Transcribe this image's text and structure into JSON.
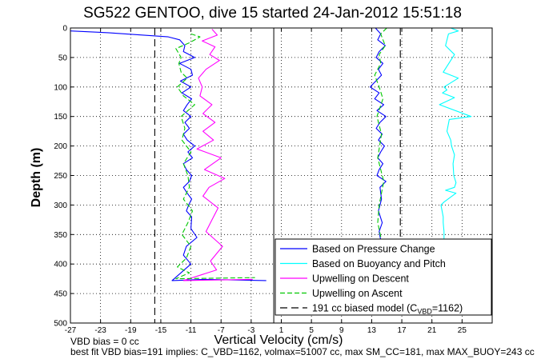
{
  "chart_data": {
    "type": "line",
    "title": "SG522 GENTOO, dive 15 started 24-Jan-2012 15:51:18",
    "xlabel": "Vertical Velocity (cm/s)",
    "ylabel": "Depth (m)",
    "xlim": [
      -27,
      29
    ],
    "ylim": [
      0,
      500
    ],
    "y_reversed": true,
    "grid": true,
    "legend_position": "bottom-right",
    "xticks": [
      -27,
      -23,
      -19,
      -15,
      -11,
      -7,
      -3,
      1,
      5,
      9,
      13,
      17,
      21,
      25
    ],
    "yticks": [
      0,
      50,
      100,
      150,
      200,
      250,
      300,
      350,
      400,
      450,
      500
    ],
    "series": [
      {
        "name": "Based on Pressure Change",
        "color": "#0000ff",
        "dash": "solid",
        "segments": [
          {
            "x": [
              -27,
              -22,
              -14,
              -12.5,
              -11.8,
              -12,
              -10.5,
              -12.5,
              -11,
              -10.8,
              -12.4,
              -11,
              -12.2,
              -10.9,
              -11.5,
              -12,
              -11,
              -11.8,
              -11.2,
              -12,
              -11.5,
              -10.5,
              -11.4,
              -10.8,
              -12,
              -11.6,
              -10.9,
              -11.2,
              -12,
              -11.5,
              -10.9,
              -11.3,
              -11.6,
              -10.9,
              -11,
              -10.2,
              -11.6,
              -12,
              -11,
              -13.5,
              -9,
              -1
            ],
            "y": [
              5,
              8,
              15,
              20,
              30,
              40,
              50,
              60,
              70,
              80,
              90,
              100,
              110,
              120,
              130,
              140,
              150,
              160,
              170,
              180,
              190,
              200,
              210,
              220,
              230,
              240,
              250,
              260,
              270,
              280,
              290,
              300,
              310,
              320,
              340,
              355,
              370,
              385,
              400,
              428,
              426,
              428
            ]
          },
          {
            "x": [
              13.5,
              14.2,
              13.8,
              14.8,
              14.0,
              13.6,
              14.5,
              13.9,
              14.3,
              12.8,
              14.0,
              13.4,
              14.6,
              13.7,
              14.9,
              14.1,
              13.6,
              14.4,
              13.9,
              14.7,
              14.2,
              13.8,
              14.5,
              14.0,
              13.7,
              14.9,
              14.1,
              14.3,
              13.9,
              14.4,
              14.0,
              14.2
            ],
            "y": [
              0,
              10,
              20,
              30,
              40,
              50,
              60,
              70,
              80,
              100,
              110,
              120,
              130,
              140,
              150,
              160,
              170,
              180,
              190,
              200,
              210,
              220,
              230,
              240,
              250,
              260,
              270,
              290,
              310,
              330,
              345,
              360
            ]
          }
        ]
      },
      {
        "name": "Based on Buoyancy and Pitch",
        "color": "#00ffff",
        "dash": "solid",
        "segments": [
          {
            "x": [
              23.5,
              24.5,
              23.2,
              22.8,
              24.0,
              23.5,
              22.5,
              24.5,
              22.6,
              23.0,
              22.4,
              24.0,
              22.0,
              26.2,
              23.3,
              23.0,
              23.5,
              23.6,
              24.0,
              23.8,
              23.9,
              24.2,
              24.0,
              22.8,
              24.2,
              22.6,
              22.2,
              22.5,
              22.5,
              22.6,
              22.6
            ],
            "y": [
              0,
              5,
              10,
              30,
              45,
              55,
              75,
              85,
              100,
              105,
              110,
              118,
              130,
              150,
              155,
              175,
              190,
              200,
              215,
              230,
              250,
              262,
              270,
              275,
              280,
              295,
              300,
              320,
              330,
              345,
              360
            ]
          }
        ]
      },
      {
        "name": "Upwelling on Descent",
        "color": "#ff00ff",
        "dash": "solid",
        "segments": [
          {
            "x": [
              -8.2,
              -7.5,
              -9.5,
              -7.8,
              -8.5,
              -7.2,
              -9.0,
              -10.0,
              -9.5,
              -9.8,
              -8.2,
              -9.4,
              -7.8,
              -9.4,
              -8.0,
              -10.2,
              -7.0,
              -9.2,
              -6.5,
              -8.6,
              -9.4,
              -7.4,
              -8.2,
              -9.0,
              -6.8,
              -8.4,
              -7.6,
              -12.0,
              -2.8
            ],
            "y": [
              2,
              12,
              22,
              32,
              45,
              55,
              70,
              85,
              100,
              115,
              130,
              145,
              160,
              175,
              190,
              205,
              220,
              240,
              255,
              270,
              285,
              305,
              325,
              345,
              370,
              395,
              410,
              428,
              426
            ]
          }
        ]
      },
      {
        "name": "Upwelling on Ascent",
        "color": "#00c800",
        "dash": "6,3",
        "segments": [
          {
            "x": [
              -11.0,
              -9.8,
              -11.2,
              -13.0,
              -12.3,
              -12.6,
              -12.3,
              -11.5,
              -12.8,
              -12.0,
              -10.5,
              -12.3,
              -11.8,
              -12.2,
              -11.0,
              -12.0,
              -11.4,
              -11.2,
              -12.0,
              -10.8,
              -11.4,
              -12.2,
              -11.0,
              -11.6,
              -12.8,
              -11.2,
              -13.0,
              -2.5
            ],
            "y": [
              10,
              15,
              25,
              35,
              50,
              60,
              75,
              85,
              100,
              115,
              130,
              150,
              170,
              190,
              210,
              230,
              250,
              270,
              290,
              310,
              330,
              350,
              370,
              390,
              405,
              415,
              425,
              423
            ]
          },
          {
            "x": [
              15.0,
              14.2,
              14.8,
              14.0,
              14.2,
              13.4,
              14.0,
              14.5,
              13.7,
              14.3,
              13.8,
              14.6,
              14.0,
              13.8,
              14.3
            ],
            "y": [
              0,
              10,
              30,
              45,
              60,
              80,
              100,
              120,
              150,
              180,
              220,
              260,
              300,
              330,
              360
            ]
          }
        ]
      },
      {
        "name": "191 cc biased model (C_VBD=1162)",
        "color": "#000000",
        "dash": "9,5",
        "segments": [
          {
            "x": [
              -15.8,
              -15.8
            ],
            "y": [
              0,
              500
            ]
          },
          {
            "x": [
              16.8,
              16.8
            ],
            "y": [
              0,
              360
            ]
          }
        ]
      }
    ],
    "reference_lines": [
      {
        "x": 0,
        "color": "#000000",
        "dash": "solid"
      }
    ],
    "legend": [
      {
        "label": "Based on Pressure Change",
        "color": "#0000ff",
        "dash": "solid"
      },
      {
        "label": "Based on Buoyancy and Pitch",
        "color": "#00ffff",
        "dash": "solid"
      },
      {
        "label": "Upwelling on Descent",
        "color": "#ff00ff",
        "dash": "solid"
      },
      {
        "label": "Upwelling on Ascent",
        "color": "#00c800",
        "dash": "6,3"
      },
      {
        "label_main": "191 cc biased model (C",
        "label_sub": "VBD",
        "label_tail": "=1162)",
        "color": "#000000",
        "dash": "9,5"
      }
    ]
  },
  "footer": {
    "line1": "VBD bias = 0 cc",
    "line2": "best fit VBD bias=191 implies: C_VBD=1162, volmax=51007 cc, max SM_CC=181, max MAX_BUOY=243 cc"
  }
}
